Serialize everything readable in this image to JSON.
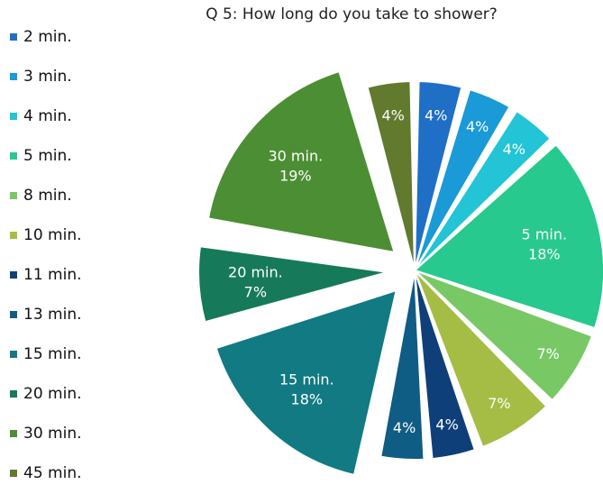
{
  "chart_data": {
    "type": "pie",
    "title": "Q 5: How long do you take to shower?",
    "legend_position": "left",
    "slices": [
      {
        "label": "2 min.",
        "value": 4,
        "value_label": "4%",
        "color": "#1F6FC6",
        "exploded": false,
        "show_category": false
      },
      {
        "label": "3 min.",
        "value": 4,
        "value_label": "4%",
        "color": "#1A9AD6",
        "exploded": false,
        "show_category": false
      },
      {
        "label": "4 min.",
        "value": 4,
        "value_label": "4%",
        "color": "#22C4D6",
        "exploded": false,
        "show_category": false
      },
      {
        "label": "5 min.",
        "value": 18,
        "value_label": "18%",
        "color": "#27C98E",
        "exploded": false,
        "show_category": true
      },
      {
        "label": "8 min.",
        "value": 7,
        "value_label": "7%",
        "color": "#78C865",
        "exploded": false,
        "show_category": false
      },
      {
        "label": "10 min.",
        "value": 7,
        "value_label": "7%",
        "color": "#A5BD45",
        "exploded": false,
        "show_category": false
      },
      {
        "label": "11 min.",
        "value": 4,
        "value_label": "4%",
        "color": "#0E3F78",
        "exploded": false,
        "show_category": false
      },
      {
        "label": "13 min.",
        "value": 4,
        "value_label": "4%",
        "color": "#0F5C85",
        "exploded": false,
        "show_category": false
      },
      {
        "label": "15 min.",
        "value": 18,
        "value_label": "18%",
        "color": "#117A83",
        "exploded": true,
        "show_category": true
      },
      {
        "label": "20 min.",
        "value": 7,
        "value_label": "7%",
        "color": "#167A5A",
        "exploded": true,
        "show_category": true
      },
      {
        "label": "30 min.",
        "value": 19,
        "value_label": "19%",
        "color": "#4C8E33",
        "exploded": true,
        "show_category": true
      },
      {
        "label": "45 min.",
        "value": 4,
        "value_label": "4%",
        "color": "#617A2E",
        "exploded": false,
        "show_category": false
      }
    ]
  }
}
